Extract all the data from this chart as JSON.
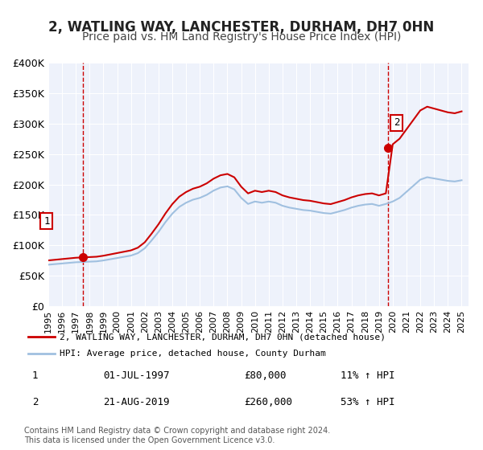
{
  "title": "2, WATLING WAY, LANCHESTER, DURHAM, DH7 0HN",
  "subtitle": "Price paid vs. HM Land Registry's House Price Index (HPI)",
  "title_fontsize": 12,
  "subtitle_fontsize": 10,
  "bg_color": "#ffffff",
  "plot_bg_color": "#eef2fb",
  "grid_color": "#ffffff",
  "hpi_color": "#a0c0e0",
  "property_color": "#cc0000",
  "marker_color": "#cc0000",
  "vline_color": "#cc0000",
  "ylim": [
    0,
    400000
  ],
  "yticks": [
    0,
    50000,
    100000,
    150000,
    200000,
    250000,
    300000,
    350000,
    400000
  ],
  "ytick_labels": [
    "£0",
    "£50K",
    "£100K",
    "£150K",
    "£200K",
    "£250K",
    "£300K",
    "£350K",
    "£400K"
  ],
  "sale1_date": 1997.5,
  "sale1_price": 80000,
  "sale1_text": "01-JUL-1997",
  "sale1_price_text": "£80,000",
  "sale1_hpi_text": "11% ↑ HPI",
  "sale2_date": 2019.64,
  "sale2_price": 260000,
  "sale2_text": "21-AUG-2019",
  "sale2_price_text": "£260,000",
  "sale2_hpi_text": "53% ↑ HPI",
  "legend_property": "2, WATLING WAY, LANCHESTER, DURHAM, DH7 0HN (detached house)",
  "legend_hpi": "HPI: Average price, detached house, County Durham",
  "footer1": "Contains HM Land Registry data © Crown copyright and database right 2024.",
  "footer2": "This data is licensed under the Open Government Licence v3.0.",
  "xmin": 1995.0,
  "xmax": 2025.5
}
